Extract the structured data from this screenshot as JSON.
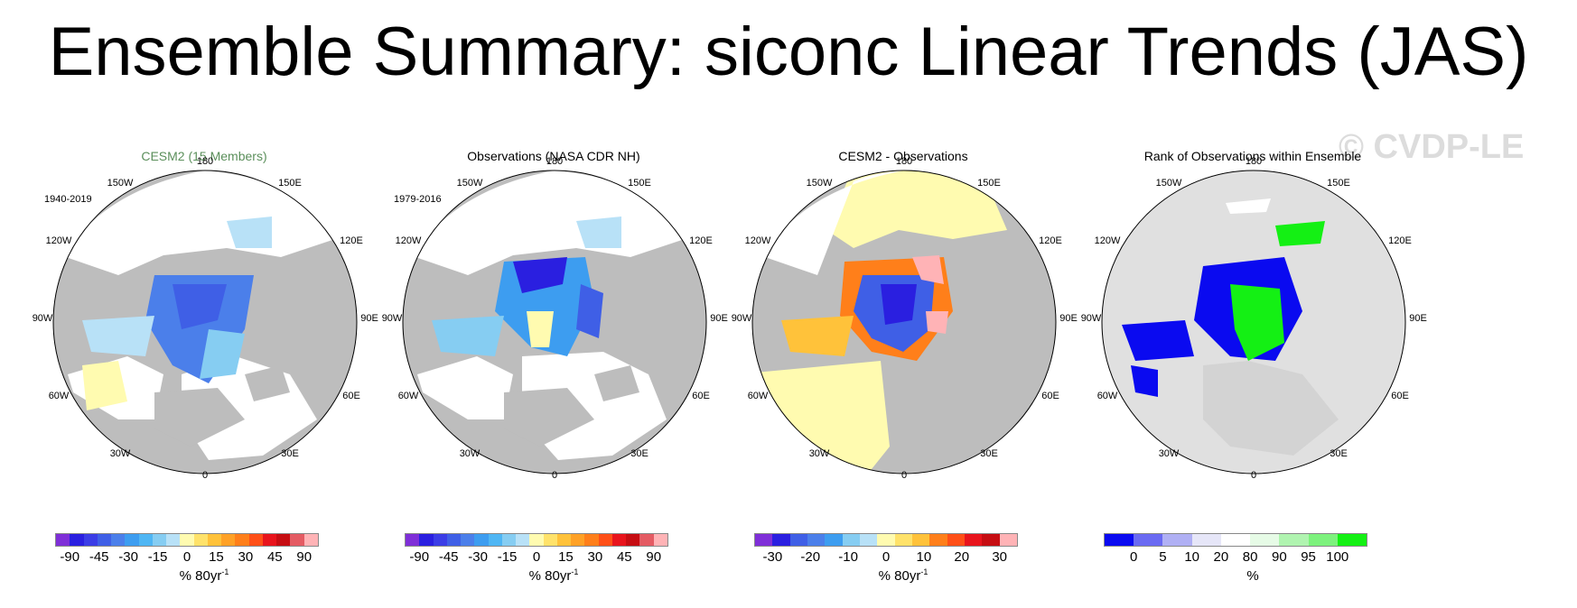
{
  "title": "Ensemble Summary: siconc Linear Trends (JAS)",
  "watermark": "© CVDP-LE",
  "directions": {
    "d180": "180",
    "d150e": "150E",
    "d120e": "120E",
    "d90e": "90E",
    "d60e": "60E",
    "d30e": "30E",
    "d0": "0",
    "d30w": "30W",
    "d60w": "60W",
    "d90w": "90W",
    "d120w": "120W",
    "d150w": "150W"
  },
  "panels": [
    {
      "title": "CESM2 (15 Members)",
      "period": "1940-2019",
      "ticks": [
        "-90",
        "-45",
        "-30",
        "-15",
        "0",
        "15",
        "30",
        "45",
        "90"
      ],
      "units": "% 80yr",
      "units_exp": "-1",
      "colorbar": [
        "#7f2fd8",
        "#2a1fe0",
        "#3b3de6",
        "#3f5fe6",
        "#4b7fea",
        "#3d9df0",
        "#4fb6f4",
        "#86cdf2",
        "#b8e1f7",
        "#fffbb0",
        "#ffe26a",
        "#ffc23a",
        "#ffa126",
        "#ff7f1a",
        "#ff4f17",
        "#e8141c",
        "#c60d12",
        "#e45b63",
        "#ffb3b6"
      ]
    },
    {
      "title": "Observations (NASA CDR NH)",
      "period": "1979-2016",
      "ticks": [
        "-90",
        "-45",
        "-30",
        "-15",
        "0",
        "15",
        "30",
        "45",
        "90"
      ],
      "units": "% 80yr",
      "units_exp": "-1",
      "colorbar": [
        "#7f2fd8",
        "#2a1fe0",
        "#3b3de6",
        "#3f5fe6",
        "#4b7fea",
        "#3d9df0",
        "#4fb6f4",
        "#86cdf2",
        "#b8e1f7",
        "#fffbb0",
        "#ffe26a",
        "#ffc23a",
        "#ffa126",
        "#ff7f1a",
        "#ff4f17",
        "#e8141c",
        "#c60d12",
        "#e45b63",
        "#ffb3b6"
      ]
    },
    {
      "title": "CESM2 - Observations",
      "period": "",
      "ticks": [
        "-30",
        "-20",
        "-10",
        "0",
        "10",
        "20",
        "30"
      ],
      "units": "% 80yr",
      "units_exp": "-1",
      "colorbar": [
        "#7f2fd8",
        "#2a1fe0",
        "#3f5fe6",
        "#4b7fea",
        "#3d9df0",
        "#86cdf2",
        "#b8e1f7",
        "#fffbb0",
        "#ffe26a",
        "#ffc23a",
        "#ff7f1a",
        "#ff4f17",
        "#e8141c",
        "#c60d12",
        "#ffb3b6"
      ]
    },
    {
      "title": "Rank of Observations within Ensemble",
      "period": "",
      "ticks": [
        "0",
        "5",
        "10",
        "20",
        "80",
        "90",
        "95",
        "100"
      ],
      "units": "%",
      "units_exp": "",
      "colorbar": [
        "#0a0af0",
        "#6a6af2",
        "#b0b0f4",
        "#e6e6f8",
        "#ffffff",
        "#e6fbe6",
        "#b0f4b0",
        "#7df27d",
        "#14f014"
      ]
    }
  ]
}
